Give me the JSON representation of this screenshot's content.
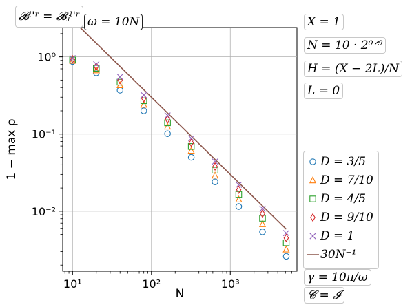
{
  "annotations": {
    "b_label": "𝓑ˡ'ʳ = 𝓑ⱼˡ'ʳ",
    "omega": "ω = 10N",
    "x_val": "X = 1",
    "n_val": "N = 10 · 2⁰ᐟ⁹",
    "h_val": "H = (X − 2L)/N",
    "l_val": "L = 0",
    "gamma": "γ = 10π/ω",
    "c_val": "𝓒 = 𝓘"
  },
  "chart_data": {
    "type": "scatter",
    "xscale": "log",
    "yscale": "log",
    "xlabel": "N",
    "ylabel": "1 − max ρ",
    "xlim": [
      7.5,
      7000
    ],
    "ylim": [
      0.00167,
      2.4
    ],
    "x_ticks": [
      {
        "value": 10,
        "label": "10¹"
      },
      {
        "value": 100,
        "label": "10²"
      },
      {
        "value": 1000,
        "label": "10³"
      }
    ],
    "y_ticks": [
      {
        "value": 1,
        "label": "10⁰"
      },
      {
        "value": 0.1,
        "label": "10⁻¹"
      },
      {
        "value": 0.01,
        "label": "10⁻²"
      }
    ],
    "grid": true,
    "legend_position": "right",
    "x": [
      10,
      20,
      40,
      80,
      160,
      320,
      640,
      1280,
      2560,
      5120
    ],
    "series": [
      {
        "name": "D = 3/5",
        "marker": "circle",
        "color": "#1f77b4",
        "values": [
          0.87,
          0.62,
          0.37,
          0.2,
          0.101,
          0.05,
          0.024,
          0.0115,
          0.0054,
          0.0026
        ]
      },
      {
        "name": "D = 7/10",
        "marker": "triangle",
        "color": "#ff7f0e",
        "values": [
          0.89,
          0.67,
          0.43,
          0.24,
          0.125,
          0.061,
          0.029,
          0.0142,
          0.0068,
          0.0032
        ]
      },
      {
        "name": "D = 4/5",
        "marker": "square",
        "color": "#2ca02c",
        "values": [
          0.91,
          0.71,
          0.47,
          0.27,
          0.14,
          0.069,
          0.034,
          0.0165,
          0.0081,
          0.0039
        ]
      },
      {
        "name": "D = 9/10",
        "marker": "diamond",
        "color": "#d62728",
        "values": [
          0.93,
          0.75,
          0.5,
          0.29,
          0.155,
          0.077,
          0.038,
          0.019,
          0.0093,
          0.0045
        ]
      },
      {
        "name": "D = 1",
        "marker": "x",
        "color": "#9467bd",
        "values": [
          0.96,
          0.8,
          0.55,
          0.32,
          0.174,
          0.088,
          0.044,
          0.022,
          0.0108,
          0.0052
        ]
      }
    ],
    "reference_line": {
      "name": "30N⁻¹",
      "color": "#8c564b",
      "coefficient": 30,
      "exponent": -1,
      "x_range": [
        10,
        5120
      ]
    }
  }
}
